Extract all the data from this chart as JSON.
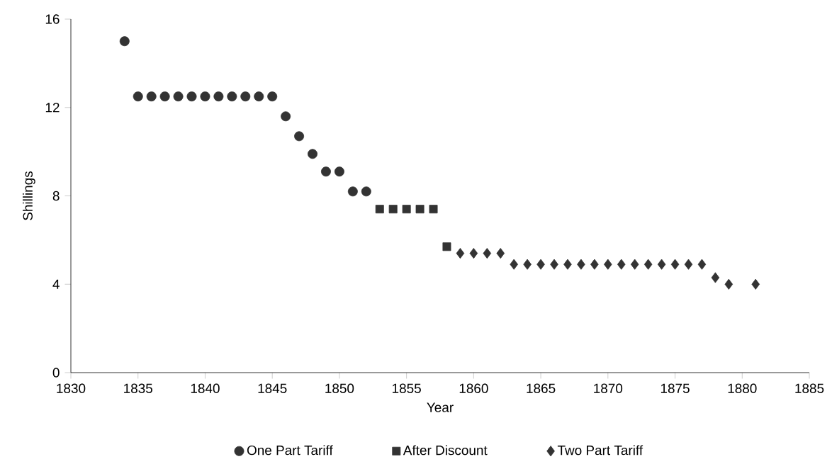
{
  "chart_data": {
    "type": "scatter",
    "xlabel": "Year",
    "ylabel": "Shillings",
    "xlim": [
      1830,
      1885
    ],
    "xticks": [
      1830,
      1835,
      1840,
      1845,
      1850,
      1855,
      1860,
      1865,
      1870,
      1875,
      1880,
      1885
    ],
    "ylim": [
      0,
      16
    ],
    "yticks": [
      0,
      4,
      8,
      12,
      16
    ],
    "grid": false,
    "legend": "bottom",
    "series": [
      {
        "name": "One Part Tariff",
        "color": "#333333",
        "marker": "circle",
        "x": [
          1834,
          1835,
          1836,
          1837,
          1838,
          1839,
          1840,
          1841,
          1842,
          1843,
          1844,
          1845,
          1846,
          1847,
          1848,
          1849,
          1850,
          1851,
          1852
        ],
        "values": [
          15.0,
          12.5,
          12.5,
          12.5,
          12.5,
          12.5,
          12.5,
          12.5,
          12.5,
          12.5,
          12.5,
          12.5,
          11.6,
          10.7,
          9.9,
          9.1,
          9.1,
          8.2,
          8.2
        ]
      },
      {
        "name": "After Discount",
        "color": "#333333",
        "marker": "square",
        "x": [
          1853,
          1854,
          1855,
          1856,
          1857,
          1858
        ],
        "values": [
          7.4,
          7.4,
          7.4,
          7.4,
          7.4,
          5.7
        ]
      },
      {
        "name": "Two Part Tariff",
        "color": "#333333",
        "marker": "diamond",
        "x": [
          1859,
          1860,
          1861,
          1862,
          1863,
          1864,
          1865,
          1866,
          1867,
          1868,
          1869,
          1870,
          1871,
          1872,
          1873,
          1874,
          1875,
          1876,
          1877,
          1878,
          1879,
          1881
        ],
        "values": [
          5.4,
          5.4,
          5.4,
          5.4,
          4.9,
          4.9,
          4.9,
          4.9,
          4.9,
          4.9,
          4.9,
          4.9,
          4.9,
          4.9,
          4.9,
          4.9,
          4.9,
          4.9,
          4.9,
          4.3,
          4.0,
          4.0
        ]
      }
    ]
  }
}
